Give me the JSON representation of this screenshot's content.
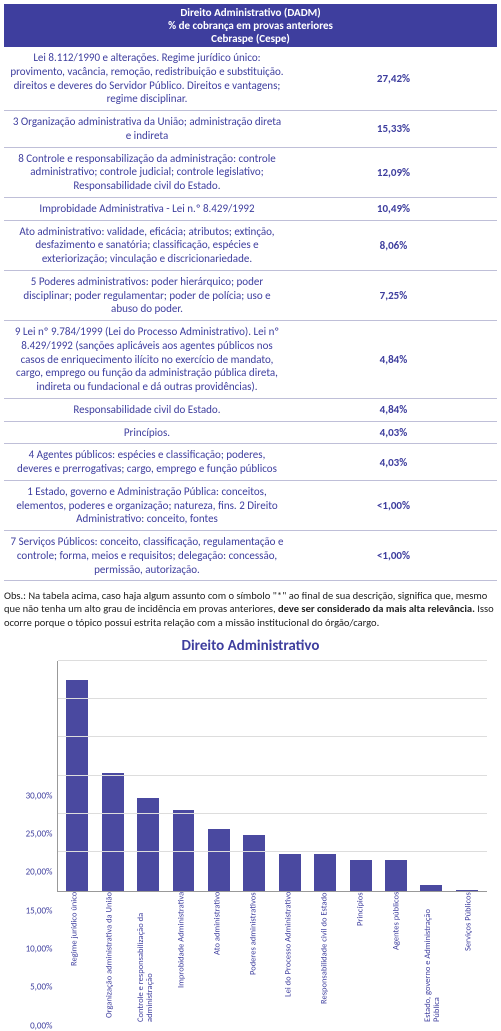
{
  "header": {
    "line1": "Direito Administrativo (DADM)",
    "line2": "% de cobrança em provas anteriores",
    "line3": "Cebraspe (Cespe)"
  },
  "rows": [
    {
      "topic": "Lei 8.112/1990 e alterações. Regime jurídico único: provimento, vacância, remoção, redistribuição e substituição. direitos e deveres do Servidor Público. Direitos e vantagens; regime disciplinar.",
      "pct": "27,42%"
    },
    {
      "topic": "3 Organização administrativa da União; administração direta e indireta",
      "pct": "15,33%"
    },
    {
      "topic": "8 Controle e responsabilização da administração: controle administrativo; controle judicial; controle legislativo; Responsabilidade civil do Estado.",
      "pct": "12,09%"
    },
    {
      "topic": "Improbidade Administrativa - Lei n.º 8.429/1992",
      "pct": "10,49%"
    },
    {
      "topic": "Ato administrativo: validade, eficácia; atributos; extinção, desfazimento e sanatória; classificação, espécies e exteriorização; vinculação e discricionariedade.",
      "pct": "8,06%"
    },
    {
      "topic": "5 Poderes administrativos: poder hierárquico; poder disciplinar; poder regulamentar; poder de polícia; uso e abuso do poder.",
      "pct": "7,25%"
    },
    {
      "topic": "9 Lei nº 9.784/1999 (Lei do Processo Administrativo). Lei nº 8.429/1992 (sanções aplicáveis aos agentes públicos nos casos de enriquecimento ilícito no exercício de mandato, cargo, emprego ou função da administração pública direta, indireta ou fundacional e dá outras providências).",
      "pct": "4,84%"
    },
    {
      "topic": "Responsabilidade civil do Estado.",
      "pct": "4,84%"
    },
    {
      "topic": "Princípios.",
      "pct": "4,03%"
    },
    {
      "topic": "4 Agentes públicos: espécies e classificação; poderes, deveres e prerrogativas; cargo, emprego e função públicos",
      "pct": "4,03%"
    },
    {
      "topic": "1 Estado, governo e Administração Pública: conceitos, elementos, poderes e organização; natureza, fins. 2 Direito Administrativo: conceito, fontes",
      "pct": "<1,00%"
    },
    {
      "topic": "7 Serviços Públicos: conceito, classificação, regulamentação e controle; forma, meios e requisitos; delegação: concessão, permissão, autorização.",
      "pct": "<1,00%"
    }
  ],
  "obs_parts": {
    "p1": "Obs.: Na tabela acima, caso haja algum assunto com o símbolo \"*\" ao final de sua descrição, significa que, mesmo que não tenha um alto grau de incidência em provas anteriores, ",
    "p2": "deve ser considerado da mais alta relevância.",
    "p3": " Isso ocorre porque o tópico possui estrita relação com a missão institucional do órgão/cargo."
  },
  "chart": {
    "title": "Direito Administrativo",
    "ylim_max": 30,
    "ytick_step": 5,
    "yticks": [
      "0,00%",
      "5,00%",
      "10,00%",
      "15,00%",
      "20,00%",
      "25,00%",
      "30,00%"
    ],
    "bar_color": "#4a49a0",
    "categories": [
      "Regime jurídico único",
      "Organização administrativa da União",
      "Controle e responsabilização da administração",
      "Improbidade Administrativa",
      "Ato administrativo",
      "Poderes administrativos",
      "Lei do Processo Administrativo",
      "Responsabilidade civil do Estado",
      "Princípios",
      "Agentes públicos",
      "Estado, governo e Administração Pública",
      "Serviços Públicos"
    ],
    "values": [
      27.42,
      15.33,
      12.09,
      10.49,
      8.06,
      7.25,
      4.84,
      4.84,
      4.03,
      4.03,
      0.8,
      0.1
    ]
  }
}
